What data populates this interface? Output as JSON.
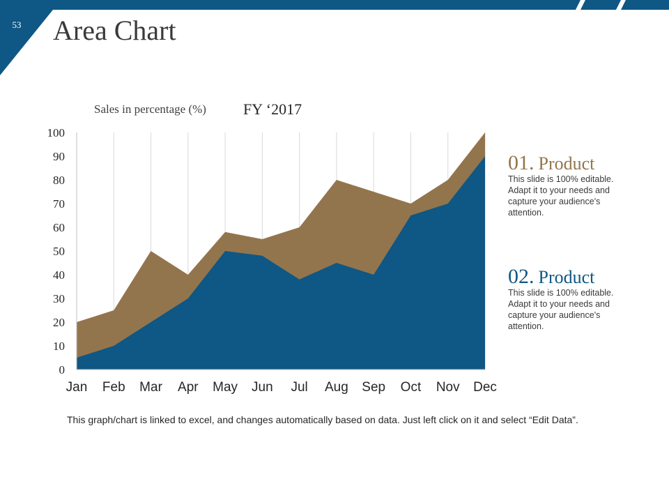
{
  "slide": {
    "number": "53",
    "title": "Area Chart"
  },
  "colors": {
    "brand_blue": "#0f5784",
    "brand_brown": "#93754d",
    "grid": "#d9d9d9"
  },
  "chart_data": {
    "type": "area",
    "title": "FY ‘2017",
    "ylabel": "Sales in percentage (%)",
    "xlabel": "",
    "categories": [
      "Jan",
      "Feb",
      "Mar",
      "Apr",
      "May",
      "Jun",
      "Jul",
      "Aug",
      "Sep",
      "Oct",
      "Nov",
      "Dec"
    ],
    "y_ticks": [
      "0",
      "10",
      "20",
      "30",
      "40",
      "50",
      "60",
      "70",
      "80",
      "90",
      "100"
    ],
    "ylim": [
      0,
      100
    ],
    "grid": "vertical",
    "series": [
      {
        "name": "Product 01",
        "color": "#93754d",
        "values": [
          20,
          25,
          50,
          40,
          58,
          55,
          60,
          80,
          75,
          70,
          80,
          100
        ]
      },
      {
        "name": "Product 02",
        "color": "#0f5784",
        "values": [
          5,
          10,
          20,
          30,
          50,
          48,
          38,
          45,
          40,
          65,
          70,
          90
        ]
      }
    ]
  },
  "legend": [
    {
      "number": "01.",
      "name": "Product",
      "text": "This slide is 100% editable. Adapt it to your needs and capture your audience's attention."
    },
    {
      "number": "02.",
      "name": "Product",
      "text": "This slide is 100% editable. Adapt it to your needs and capture your audience's attention."
    }
  ],
  "footer_note": "This graph/chart is linked to excel, and changes automatically based on data. Just left click on it and select “Edit Data”."
}
